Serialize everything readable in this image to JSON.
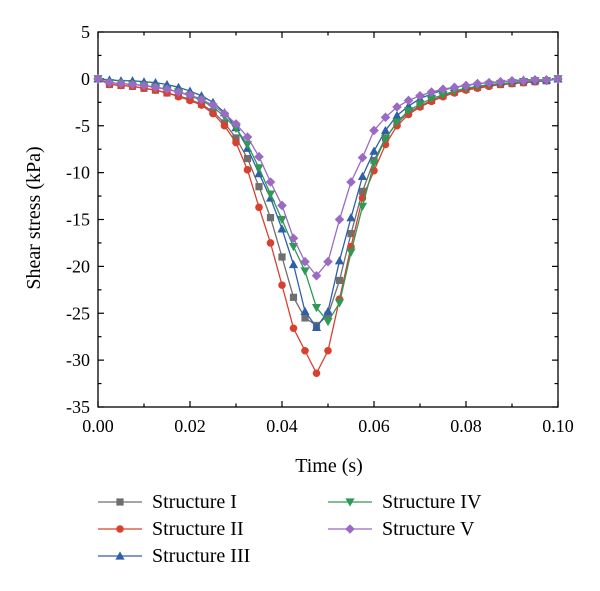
{
  "chart_data": {
    "type": "line",
    "title": "",
    "xlabel": "Time (s)",
    "ylabel": "Shear stress (kPa)",
    "xlim": [
      0.0,
      0.1
    ],
    "ylim": [
      -35,
      5
    ],
    "xticks": [
      0.0,
      0.02,
      0.04,
      0.06,
      0.08,
      0.1
    ],
    "xtick_labels": [
      "0.00",
      "0.02",
      "0.04",
      "0.06",
      "0.08",
      "0.10"
    ],
    "yticks": [
      5,
      0,
      -5,
      -10,
      -15,
      -20,
      -25,
      -30,
      -35
    ],
    "ytick_labels": [
      "5",
      "0",
      "-5",
      "-10",
      "-15",
      "-20",
      "-25",
      "-30",
      "-35"
    ],
    "grid": false,
    "legend_position": "bottom",
    "x": [
      0.0,
      0.0025,
      0.005,
      0.0075,
      0.01,
      0.0125,
      0.015,
      0.0175,
      0.02,
      0.0225,
      0.025,
      0.0275,
      0.03,
      0.0325,
      0.035,
      0.0375,
      0.04,
      0.0425,
      0.045,
      0.0475,
      0.05,
      0.0525,
      0.055,
      0.0575,
      0.06,
      0.0625,
      0.065,
      0.0675,
      0.07,
      0.0725,
      0.075,
      0.0775,
      0.08,
      0.0825,
      0.085,
      0.0875,
      0.09,
      0.0925,
      0.095,
      0.0975,
      0.1
    ],
    "series": [
      {
        "name": "Structure I",
        "color": "#6f6f6f",
        "marker": "square",
        "values": [
          0.0,
          -0.6,
          -0.7,
          -0.8,
          -1.0,
          -1.2,
          -1.5,
          -1.8,
          -2.2,
          -2.7,
          -3.5,
          -4.7,
          -6.3,
          -8.5,
          -11.5,
          -14.8,
          -19.0,
          -23.3,
          -25.5,
          -26.3,
          -25.2,
          -21.5,
          -16.5,
          -12.0,
          -8.7,
          -6.3,
          -4.7,
          -3.6,
          -2.9,
          -2.3,
          -1.8,
          -1.4,
          -1.1,
          -0.9,
          -0.7,
          -0.6,
          -0.5,
          -0.4,
          -0.3,
          -0.2,
          0.0
        ]
      },
      {
        "name": "Structure II",
        "color": "#d8402f",
        "marker": "circle",
        "values": [
          0.0,
          -0.6,
          -0.7,
          -0.8,
          -1.0,
          -1.2,
          -1.5,
          -1.9,
          -2.3,
          -2.8,
          -3.7,
          -5.0,
          -6.8,
          -9.7,
          -13.7,
          -17.5,
          -22.0,
          -26.6,
          -29.0,
          -31.4,
          -29.0,
          -23.5,
          -17.9,
          -12.7,
          -9.8,
          -7.0,
          -5.0,
          -3.8,
          -3.0,
          -2.4,
          -1.9,
          -1.5,
          -1.2,
          -1.0,
          -0.8,
          -0.6,
          -0.5,
          -0.4,
          -0.3,
          -0.2,
          0.0
        ]
      },
      {
        "name": "Structure III",
        "color": "#2f5fa8",
        "marker": "triangle-up",
        "values": [
          0.0,
          -0.1,
          -0.2,
          -0.2,
          -0.3,
          -0.4,
          -0.6,
          -0.9,
          -1.3,
          -1.8,
          -2.5,
          -3.6,
          -5.2,
          -7.4,
          -10.1,
          -12.7,
          -16.0,
          -19.8,
          -24.8,
          -26.5,
          -24.8,
          -19.4,
          -14.8,
          -10.4,
          -7.7,
          -5.5,
          -3.9,
          -2.9,
          -2.1,
          -1.6,
          -1.2,
          -0.9,
          -0.7,
          -0.5,
          -0.4,
          -0.3,
          -0.2,
          -0.1,
          -0.1,
          -0.1,
          0.0
        ]
      },
      {
        "name": "Structure IV",
        "color": "#2f9a55",
        "marker": "triangle-down",
        "values": [
          0.0,
          -0.4,
          -0.5,
          -0.6,
          -0.7,
          -0.9,
          -1.1,
          -1.4,
          -1.8,
          -2.3,
          -3.0,
          -4.0,
          -5.3,
          -7.0,
          -9.5,
          -12.3,
          -15.0,
          -17.9,
          -20.5,
          -24.4,
          -25.9,
          -23.9,
          -18.5,
          -13.6,
          -9.0,
          -6.4,
          -4.6,
          -3.4,
          -2.7,
          -2.1,
          -1.7,
          -1.3,
          -1.0,
          -0.8,
          -0.6,
          -0.5,
          -0.4,
          -0.3,
          -0.2,
          -0.2,
          0.0
        ]
      },
      {
        "name": "Structure V",
        "color": "#9a6ac4",
        "marker": "diamond",
        "values": [
          0.0,
          -0.4,
          -0.5,
          -0.6,
          -0.7,
          -0.9,
          -1.1,
          -1.4,
          -1.7,
          -2.2,
          -2.8,
          -3.7,
          -4.8,
          -6.2,
          -8.3,
          -11.0,
          -13.5,
          -17.0,
          -19.5,
          -21.0,
          -19.5,
          -15.0,
          -11.0,
          -8.4,
          -5.5,
          -4.1,
          -3.0,
          -2.3,
          -1.8,
          -1.4,
          -1.1,
          -0.9,
          -0.7,
          -0.5,
          -0.4,
          -0.3,
          -0.2,
          -0.2,
          -0.1,
          -0.1,
          0.0
        ]
      }
    ]
  }
}
